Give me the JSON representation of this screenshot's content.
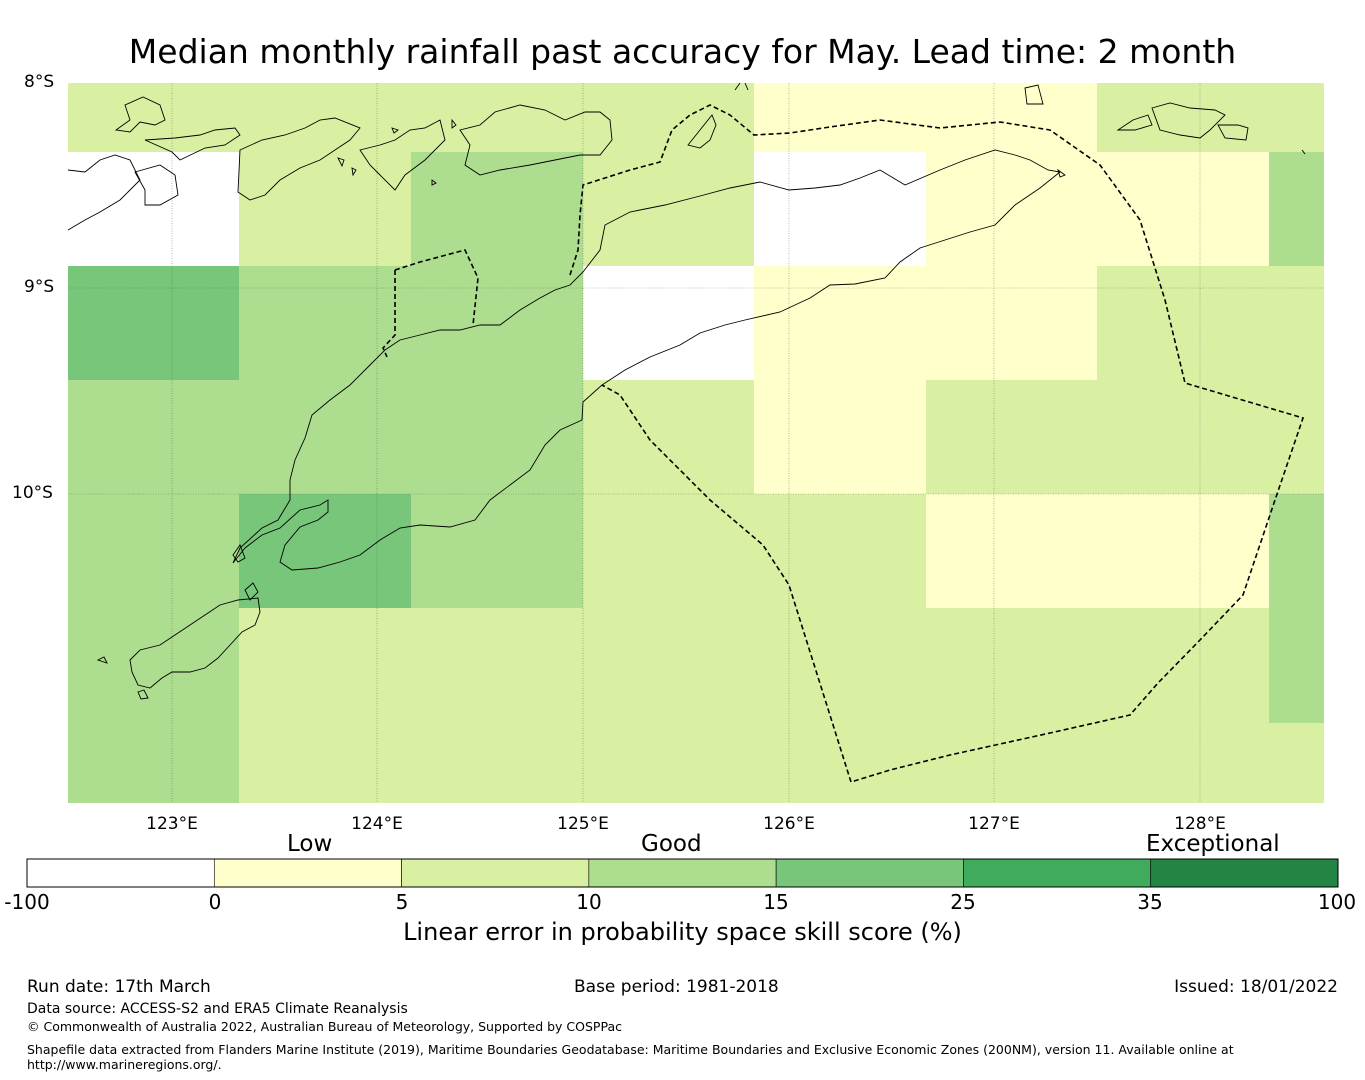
{
  "title": "Median monthly rainfall past accuracy for May. Lead time: 2 month",
  "lat_labels": [
    "8°S",
    "9°S",
    "10°S"
  ],
  "lon_labels": [
    "123°E",
    "124°E",
    "125°E",
    "126°E",
    "127°E",
    "128°E"
  ],
  "colorbar": {
    "categories": [
      "Low",
      "Good",
      "Exceptional"
    ],
    "ticks": [
      "-100",
      "0",
      "5",
      "10",
      "15",
      "25",
      "35",
      "100"
    ],
    "colors": [
      "#ffffff",
      "#ffffcc",
      "#d9f0a3",
      "#addd8e",
      "#78c679",
      "#41ab5d",
      "#238443"
    ],
    "label": "Linear error in probability space skill score (%)"
  },
  "grid_colors": {
    "none": "#ffffff",
    "low": "#ffffcc",
    "good1": "#d9f0a3",
    "good2": "#addd8e",
    "good3": "#78c679"
  },
  "footer": {
    "run_date": "Run date: 17th March",
    "base_period": "Base period: 1981-2018",
    "issued": "Issued: 18/01/2022",
    "data_source": "Data source: ACCESS-S2 and ERA5 Climate Reanalysis",
    "copyright": "© Commonwealth of Australia 2022, Australian Bureau of Meteorology, Supported by COSPPac",
    "shapefile_line1": "Shapefile data extracted from Flanders Marine Institute (2019), Maritime Boundaries Geodatabase: Maritime Boundaries and Exclusive Economic Zones (200NM), version 11. Available online at",
    "shapefile_line2": "http://www.marineregions.org/."
  }
}
